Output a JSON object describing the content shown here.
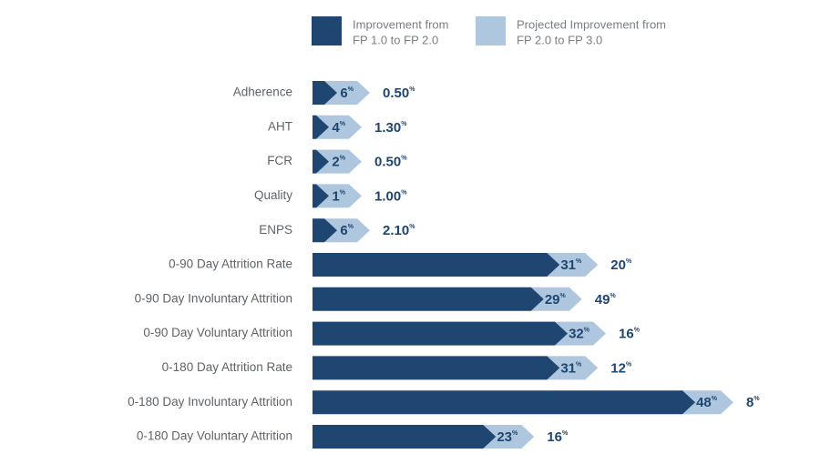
{
  "chart_data": {
    "type": "bar",
    "orientation": "horizontal",
    "stacked": true,
    "categories": [
      "Adherence",
      "AHT",
      "FCR",
      "Quality",
      "ENPS",
      "0-90 Day Attrition Rate",
      "0-90 Day Involuntary Attrition",
      "0-90 Day Voluntary Attrition",
      "0-180 Day Attrition Rate",
      "0-180 Day Involuntary Attrition",
      "0-180 Day Voluntary Attrition"
    ],
    "series": [
      {
        "name": "Improvement from FP 1.0 to FP 2.0",
        "color": "#1f4670",
        "values": [
          6,
          4,
          2,
          1,
          6,
          31,
          29,
          32,
          31,
          48,
          23
        ],
        "labels": [
          "6",
          "4",
          "2",
          "1",
          "6",
          "31",
          "29",
          "32",
          "31",
          "48",
          "23"
        ]
      },
      {
        "name": "Projected Improvement from FP 2.0 to FP 3.0",
        "color": "#aec6de",
        "values": [
          0.5,
          1.3,
          0.5,
          1.0,
          2.1,
          20,
          49,
          16,
          12,
          8,
          16
        ],
        "labels": [
          "0.50",
          "1.30",
          "0.50",
          "1.00",
          "2.10",
          "20",
          "49",
          "16",
          "12",
          "8",
          "16"
        ]
      }
    ],
    "value_suffix": "%",
    "legend": {
      "position": "top",
      "items": [
        {
          "line1": "Improvement from",
          "line2": "FP 1.0 to FP 2.0",
          "color": "#1f4670"
        },
        {
          "line1": "Projected Improvement from",
          "line2": "FP 2.0 to FP 3.0",
          "color": "#aec6de"
        }
      ]
    },
    "title": "",
    "xlabel": "",
    "ylabel": "",
    "grid": false
  }
}
